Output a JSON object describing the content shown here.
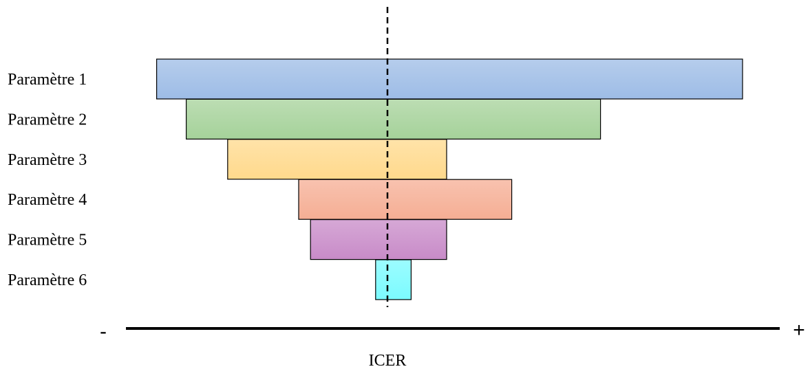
{
  "chart_data": {
    "type": "bar",
    "orientation": "horizontal",
    "categories": [
      "Paramètre 1",
      "Paramètre 2",
      "Paramètre 3",
      "Paramètre 4",
      "Paramètre 5",
      "Paramètre 6"
    ],
    "axis": {
      "label": "ICER",
      "min_label": "-",
      "max_label": "+"
    },
    "bars": [
      {
        "name": "Paramètre 1",
        "low": -0.39,
        "high": 0.6,
        "color": "#9DBCE6"
      },
      {
        "name": "Paramètre 2",
        "low": -0.34,
        "high": 0.36,
        "color": "#A5D29A"
      },
      {
        "name": "Paramètre 3",
        "low": -0.27,
        "high": 0.1,
        "color": "#FFD98C"
      },
      {
        "name": "Paramètre 4",
        "low": -0.15,
        "high": 0.21,
        "color": "#F5AE94"
      },
      {
        "name": "Paramètre 5",
        "low": -0.13,
        "high": 0.1,
        "color": "#C88BC8"
      },
      {
        "name": "Paramètre 6",
        "low": -0.02,
        "high": 0.04,
        "color": "#7BFBFF"
      }
    ]
  }
}
